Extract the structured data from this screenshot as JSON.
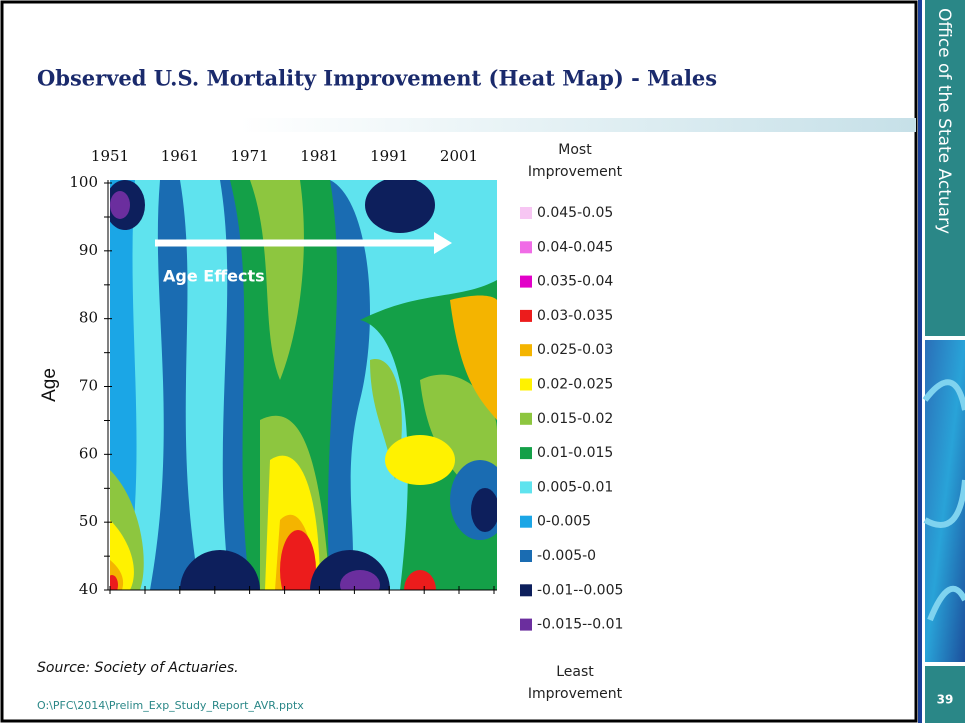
{
  "slide": {
    "title": "Observed U.S. Mortality Improvement (Heat Map) - Males",
    "sidebar": "Office of the State Actuary",
    "page_number": "39",
    "source": "Source:  Society of Actuaries.",
    "footer": "O:\\PFC\\2014\\Prelim_Exp_Study_Report_AVR.pptx",
    "heatmap": {
      "y_axis_label": "Age",
      "x_tick_labels": [
        "1951",
        "1961",
        "1971",
        "1981",
        "1991",
        "2001"
      ],
      "y_tick_labels": [
        "100",
        "90",
        "80",
        "70",
        "60",
        "50",
        "40"
      ],
      "annotation": "Age Effects",
      "legend_top": "Most Improvement",
      "legend_bottom": "Least Improvement",
      "legend": [
        {
          "label": "0.045-0.05",
          "color": "#f7c6f3"
        },
        {
          "label": "0.04-0.045",
          "color": "#f06ce6"
        },
        {
          "label": "0.035-0.04",
          "color": "#e200c8"
        },
        {
          "label": "0.03-0.035",
          "color": "#ec1c1c"
        },
        {
          "label": "0.025-0.03",
          "color": "#f4b400"
        },
        {
          "label": "0.02-0.025",
          "color": "#fff200"
        },
        {
          "label": "0.015-0.02",
          "color": "#8dc63f"
        },
        {
          "label": "0.01-0.015",
          "color": "#14a048"
        },
        {
          "label": "0.005-0.01",
          "color": "#5fe3ee"
        },
        {
          "label": "0-0.005",
          "color": "#1ba6e6"
        },
        {
          "label": "-0.005-0",
          "color": "#1a6cb2"
        },
        {
          "label": "-0.01--0.005",
          "color": "#0d1f5c"
        },
        {
          "label": "-0.015--0.01",
          "color": "#6b2e9e"
        }
      ]
    }
  }
}
